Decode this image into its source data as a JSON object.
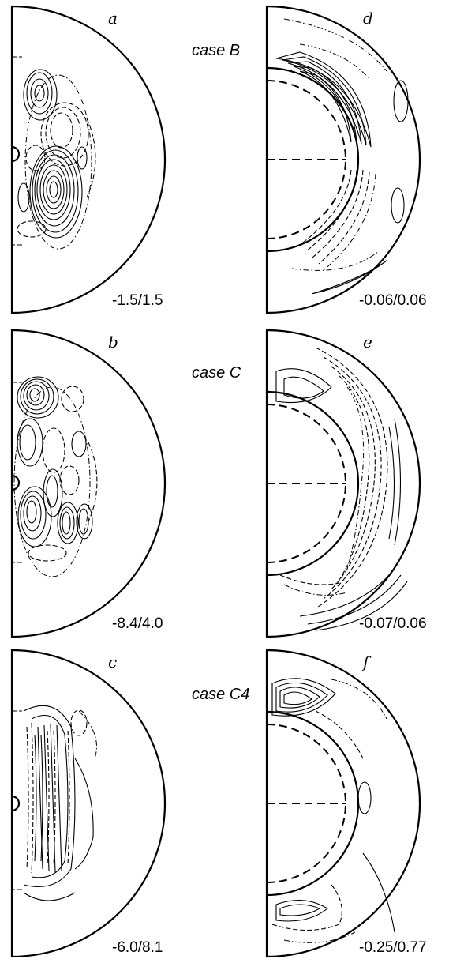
{
  "panels": [
    {
      "id": "a",
      "letter": "a",
      "range": "-1.5/1.5",
      "kind": "left"
    },
    {
      "id": "d",
      "letter": "d",
      "range": "-0.06/0.06",
      "kind": "right"
    },
    {
      "id": "b",
      "letter": "b",
      "range": "-8.4/4.0",
      "kind": "left"
    },
    {
      "id": "e",
      "letter": "e",
      "range": "-0.07/0.06",
      "kind": "right"
    },
    {
      "id": "c",
      "letter": "c",
      "range": "-6.0/8.1",
      "kind": "left"
    },
    {
      "id": "f",
      "letter": "f",
      "range": "-0.25/0.77",
      "kind": "right"
    }
  ],
  "cases": [
    "case B",
    "case C",
    "case C4"
  ]
}
